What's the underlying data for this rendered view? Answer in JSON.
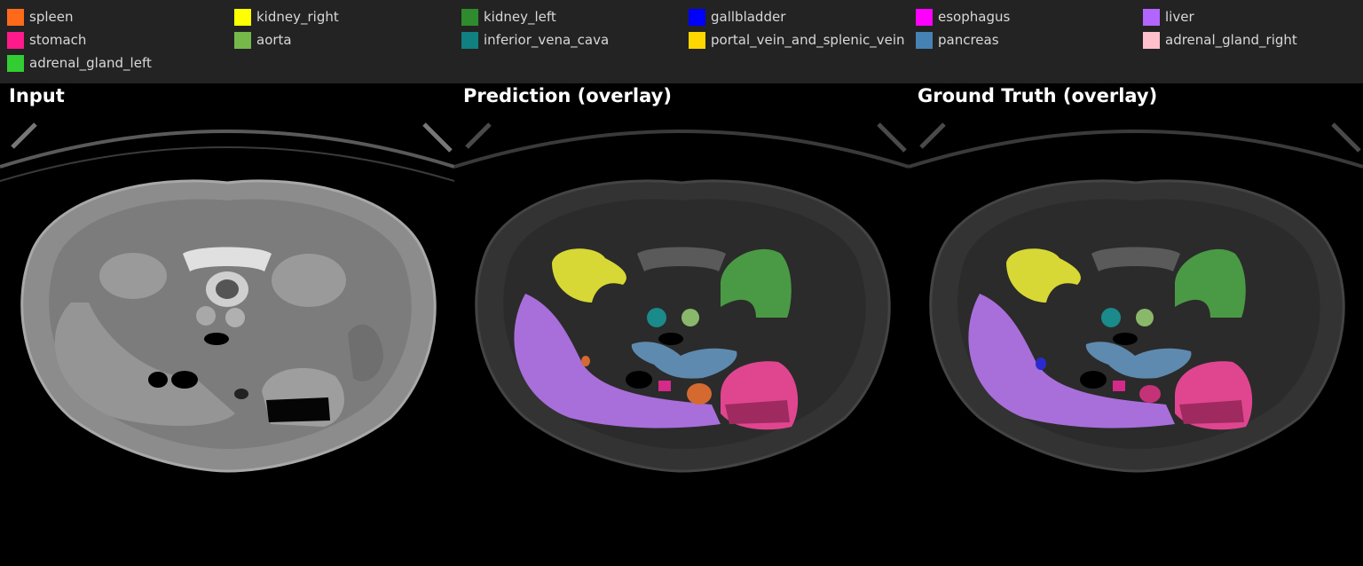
{
  "legend": {
    "items": [
      {
        "label": "spleen",
        "color": "#ff6a1a"
      },
      {
        "label": "kidney_right",
        "color": "#ffff00"
      },
      {
        "label": "kidney_left",
        "color": "#2e8b2e"
      },
      {
        "label": "gallbladder",
        "color": "#0000ff"
      },
      {
        "label": "esophagus",
        "color": "#ff00ff"
      },
      {
        "label": "liver",
        "color": "#b366ff"
      },
      {
        "label": "stomach",
        "color": "#ff1a8c"
      },
      {
        "label": "aorta",
        "color": "#77b84a"
      },
      {
        "label": "inferior_vena_cava",
        "color": "#118080"
      },
      {
        "label": "portal_vein_and_splenic_vein",
        "color": "#ffd700"
      },
      {
        "label": "pancreas",
        "color": "#4682b4"
      },
      {
        "label": "adrenal_gland_right",
        "color": "#ffc0cb"
      },
      {
        "label": "adrenal_gland_left",
        "color": "#32cd32"
      }
    ]
  },
  "panels": {
    "input_title": "Input",
    "prediction_title": "Prediction (overlay)",
    "ground_truth_title": "Ground Truth (overlay)"
  }
}
